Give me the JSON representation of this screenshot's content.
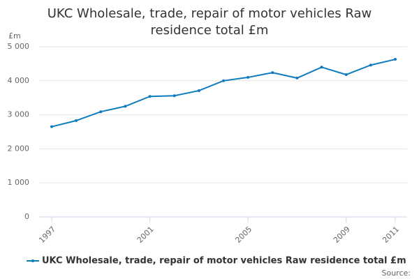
{
  "chart_data": {
    "type": "line",
    "title": "UKC Wholesale, trade, repair of motor vehicles Raw residence total £m",
    "y_unit": "£m",
    "source": "Source:",
    "x": [
      1997,
      1998,
      1999,
      2000,
      2001,
      2002,
      2003,
      2004,
      2005,
      2006,
      2007,
      2008,
      2009,
      2010,
      2011
    ],
    "series": [
      {
        "name": "UKC Wholesale, trade, repair of motor vehicles Raw residence total £m",
        "color": "#0f7cbf",
        "values": [
          2650,
          2830,
          3090,
          3250,
          3540,
          3560,
          3710,
          4000,
          4100,
          4240,
          4080,
          4400,
          4180,
          4460,
          4630
        ]
      }
    ],
    "xlim": [
      1997,
      2011
    ],
    "xticks": [
      1997,
      2001,
      2005,
      2009,
      2011
    ],
    "ylim": [
      0,
      5000
    ],
    "yticks": [
      0,
      {
        "value": 1000,
        "label": "1 000"
      },
      {
        "value": 2000,
        "label": "2 000"
      },
      {
        "value": 3000,
        "label": "3 000"
      },
      {
        "value": 4000,
        "label": "4 000"
      },
      {
        "value": 5000,
        "label": "5 000"
      }
    ],
    "grid": true
  }
}
